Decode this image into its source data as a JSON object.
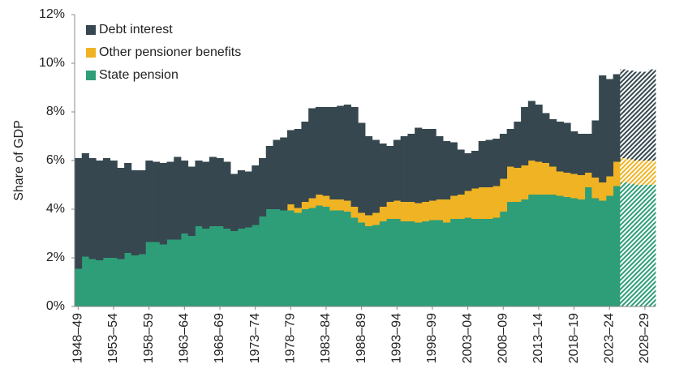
{
  "chart_data": {
    "type": "stacked-bar",
    "y_label": "Share of GDP",
    "categories": [
      "1948–49",
      null,
      null,
      null,
      null,
      "1953–54",
      null,
      null,
      null,
      null,
      "1958–59",
      null,
      null,
      null,
      null,
      "1963–64",
      null,
      null,
      null,
      null,
      "1968–69",
      null,
      null,
      null,
      null,
      "1973–74",
      null,
      null,
      null,
      null,
      "1978–79",
      null,
      null,
      null,
      null,
      "1983–84",
      null,
      null,
      null,
      null,
      "1988–89",
      null,
      null,
      null,
      null,
      "1993–94",
      null,
      null,
      null,
      null,
      "1998–99",
      null,
      null,
      null,
      null,
      "2003–04",
      null,
      null,
      null,
      null,
      "2008–09",
      null,
      null,
      null,
      null,
      "2013–14",
      null,
      null,
      null,
      null,
      "2018–19",
      null,
      null,
      null,
      null,
      "2023–24",
      null,
      null,
      null,
      null,
      "2028–29",
      null
    ],
    "series": [
      {
        "name": "Debt interest",
        "color": "#36474f",
        "values": [
          4.55,
          4.25,
          4.15,
          4.1,
          4.1,
          4.0,
          3.75,
          3.7,
          3.5,
          3.45,
          3.35,
          3.3,
          3.35,
          3.2,
          3.4,
          3.0,
          2.85,
          2.7,
          2.75,
          2.85,
          2.8,
          2.75,
          2.35,
          2.4,
          2.3,
          2.45,
          2.4,
          2.6,
          2.85,
          3.0,
          3.05,
          3.25,
          3.3,
          3.7,
          3.6,
          3.65,
          3.8,
          3.85,
          3.95,
          4.1,
          3.7,
          3.25,
          3.0,
          2.6,
          2.3,
          2.5,
          2.7,
          2.8,
          3.1,
          3.0,
          2.95,
          2.6,
          2.4,
          2.2,
          1.85,
          1.55,
          1.55,
          1.9,
          1.95,
          1.95,
          1.85,
          1.55,
          1.9,
          2.4,
          2.45,
          2.35,
          2.05,
          1.95,
          2.05,
          2.05,
          1.75,
          1.7,
          1.6,
          2.35,
          4.4,
          4.0,
          3.6,
          3.65,
          3.65,
          3.65,
          3.65,
          3.75
        ]
      },
      {
        "name": "Other pensioner benefits",
        "color": "#f0b323",
        "values": [
          0,
          0,
          0,
          0,
          0,
          0,
          0,
          0,
          0,
          0,
          0,
          0,
          0,
          0,
          0,
          0,
          0,
          0,
          0,
          0,
          0,
          0,
          0,
          0,
          0,
          0,
          0,
          0,
          0,
          0,
          0.25,
          0.2,
          0.3,
          0.4,
          0.45,
          0.45,
          0.45,
          0.45,
          0.45,
          0.45,
          0.4,
          0.45,
          0.5,
          0.6,
          0.7,
          0.75,
          0.8,
          0.8,
          0.8,
          0.8,
          0.8,
          0.85,
          0.95,
          0.95,
          1.0,
          1.1,
          1.25,
          1.3,
          1.3,
          1.3,
          1.35,
          1.45,
          1.4,
          1.4,
          1.4,
          1.35,
          1.3,
          1.15,
          1.0,
          1.0,
          1.0,
          1.0,
          0.6,
          0.85,
          0.75,
          0.8,
          1.0,
          1.0,
          1.0,
          1.0,
          1.0,
          1.0
        ]
      },
      {
        "name": "State pension",
        "color": "#2e9e78",
        "values": [
          1.55,
          2.05,
          1.95,
          1.9,
          2.0,
          2.0,
          1.95,
          2.2,
          2.1,
          2.15,
          2.65,
          2.65,
          2.55,
          2.75,
          2.75,
          3.0,
          2.9,
          3.3,
          3.2,
          3.3,
          3.3,
          3.2,
          3.1,
          3.2,
          3.25,
          3.35,
          3.7,
          4.0,
          4.0,
          3.95,
          3.95,
          3.85,
          4.0,
          4.05,
          4.15,
          4.1,
          3.95,
          3.95,
          3.9,
          3.65,
          3.45,
          3.3,
          3.35,
          3.5,
          3.6,
          3.6,
          3.5,
          3.5,
          3.45,
          3.5,
          3.55,
          3.55,
          3.45,
          3.6,
          3.6,
          3.65,
          3.6,
          3.6,
          3.6,
          3.65,
          3.9,
          4.3,
          4.3,
          4.4,
          4.6,
          4.6,
          4.6,
          4.6,
          4.55,
          4.5,
          4.45,
          4.4,
          4.9,
          4.45,
          4.35,
          4.55,
          4.95,
          5.1,
          5.05,
          5.0,
          5.0,
          5.0
        ]
      }
    ],
    "hatch_from": 77,
    "ylim": [
      0,
      12
    ],
    "yticks": [
      {
        "value": 0,
        "label": "0%"
      },
      {
        "value": 2,
        "label": "2%"
      },
      {
        "value": 4,
        "label": "4%"
      },
      {
        "value": 6,
        "label": "6%"
      },
      {
        "value": 8,
        "label": "8%"
      },
      {
        "value": 10,
        "label": "10%"
      },
      {
        "value": 12,
        "label": "12%"
      }
    ],
    "legend": "top-left",
    "grid": false
  }
}
